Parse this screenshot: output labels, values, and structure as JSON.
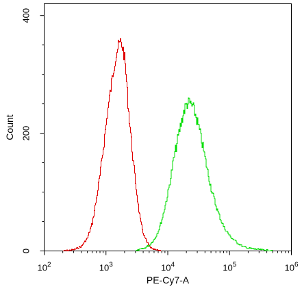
{
  "chart_data": {
    "type": "line",
    "xlabel": "PE-Cy7-A",
    "ylabel": "Count",
    "x_scale": "log",
    "xlim": [
      100,
      1000000
    ],
    "ylim": [
      0,
      420
    ],
    "grid": false,
    "x_ticks": [
      {
        "value": 100,
        "base": "10",
        "exp": "2"
      },
      {
        "value": 1000,
        "base": "10",
        "exp": "3"
      },
      {
        "value": 10000,
        "base": "10",
        "exp": "4"
      },
      {
        "value": 100000,
        "base": "10",
        "exp": "5"
      },
      {
        "value": 1000000,
        "base": "10",
        "exp": "6"
      }
    ],
    "y_ticks": [
      {
        "value": 0,
        "label": "0"
      },
      {
        "value": 200,
        "label": "200"
      },
      {
        "value": 400,
        "label": "400"
      }
    ],
    "series": [
      {
        "color": "#e00000",
        "x": [
          200,
          300,
          400,
          500,
          600,
          700,
          800,
          900,
          1000,
          1100,
          1200,
          1300,
          1400,
          1500,
          1600,
          1700,
          1800,
          1900,
          2000,
          2100,
          2200,
          2300,
          2500,
          2700,
          3000,
          3300,
          3600,
          4000,
          4500,
          5000,
          5500,
          6000,
          7000,
          8000
        ],
        "y": [
          0,
          2,
          8,
          22,
          48,
          90,
          130,
          175,
          215,
          250,
          278,
          305,
          325,
          340,
          350,
          355,
          350,
          340,
          325,
          300,
          270,
          240,
          200,
          160,
          115,
          78,
          50,
          30,
          16,
          8,
          4,
          2,
          1,
          0
        ]
      },
      {
        "color": "#00dd00",
        "x": [
          3000,
          4000,
          5000,
          6000,
          7000,
          8000,
          9000,
          10000,
          11000,
          12000,
          14000,
          16000,
          18000,
          20000,
          22000,
          25000,
          28000,
          32000,
          36000,
          40000,
          45000,
          50000,
          60000,
          70000,
          80000,
          100000,
          130000,
          160000,
          200000,
          260000,
          330000,
          420000,
          500000
        ],
        "y": [
          0,
          4,
          10,
          20,
          35,
          55,
          78,
          100,
          125,
          150,
          185,
          215,
          238,
          250,
          252,
          245,
          230,
          205,
          180,
          155,
          128,
          105,
          75,
          55,
          40,
          25,
          14,
          8,
          5,
          3,
          2,
          1,
          0
        ]
      }
    ]
  }
}
